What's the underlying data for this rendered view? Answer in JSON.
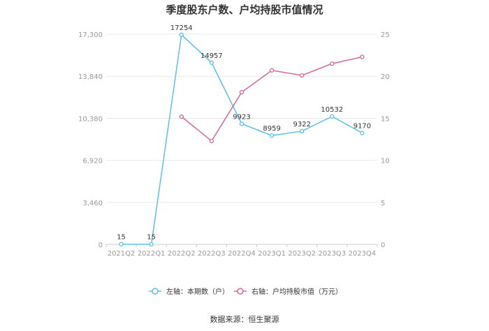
{
  "chart_data": {
    "type": "line",
    "title": "季度股东户数、户均持股市值情况",
    "categories": [
      "2021Q2",
      "2022Q1",
      "2022Q2",
      "2022Q3",
      "2022Q4",
      "2023Q1",
      "2023Q2",
      "2023Q3",
      "2023Q4"
    ],
    "y_left": {
      "ticks": [
        "0",
        "3,460",
        "6,920",
        "10,380",
        "13,840",
        "17,300"
      ],
      "range": [
        0,
        17300
      ]
    },
    "y_right": {
      "ticks": [
        "0",
        "5",
        "10",
        "15",
        "20",
        "25"
      ],
      "range": [
        0,
        25
      ]
    },
    "series": [
      {
        "name": "左轴：本期数（户）",
        "axis": "left",
        "color": "#5bc0eb",
        "values": [
          15,
          15,
          17254,
          14957,
          9923,
          8959,
          9322,
          10532,
          9170
        ],
        "labels": [
          "15",
          "15",
          "17254",
          "14957",
          "9923",
          "8959",
          "9322",
          "10532",
          "9170"
        ]
      },
      {
        "name": "右轴：户均持股市值（万元）",
        "axis": "right",
        "color": "#d4669c",
        "values": [
          null,
          null,
          15.2,
          12.3,
          18.1,
          20.7,
          20.1,
          21.5,
          22.3
        ]
      }
    ],
    "grid": true,
    "legend_position": "bottom"
  },
  "source": "数据来源：恒生聚源"
}
